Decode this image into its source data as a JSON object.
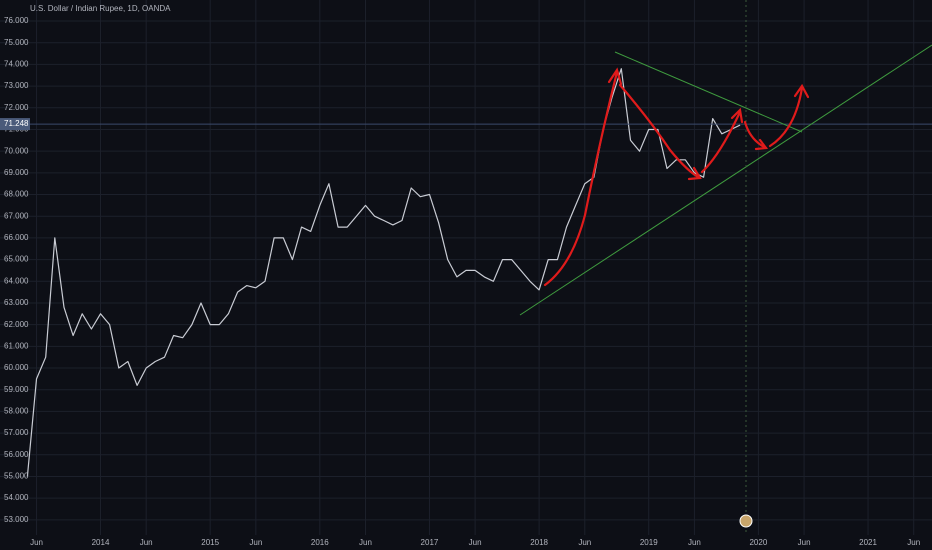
{
  "chart_data": {
    "type": "line",
    "title": "U.S. Dollar / Indian Rupee, 1D, OANDA",
    "x": [
      "2013-05",
      "2013-06",
      "2013-07",
      "2013-08",
      "2013-09",
      "2013-10",
      "2013-11",
      "2013-12",
      "2014-01",
      "2014-02",
      "2014-03",
      "2014-04",
      "2014-05",
      "2014-06",
      "2014-07",
      "2014-08",
      "2014-09",
      "2014-10",
      "2014-11",
      "2014-12",
      "2015-01",
      "2015-02",
      "2015-03",
      "2015-04",
      "2015-05",
      "2015-06",
      "2015-07",
      "2015-08",
      "2015-09",
      "2015-10",
      "2015-11",
      "2015-12",
      "2016-01",
      "2016-02",
      "2016-03",
      "2016-04",
      "2016-05",
      "2016-06",
      "2016-07",
      "2016-08",
      "2016-09",
      "2016-10",
      "2016-11",
      "2016-12",
      "2017-01",
      "2017-02",
      "2017-03",
      "2017-04",
      "2017-05",
      "2017-06",
      "2017-07",
      "2017-08",
      "2017-09",
      "2017-10",
      "2017-11",
      "2017-12",
      "2018-01",
      "2018-02",
      "2018-03",
      "2018-04",
      "2018-05",
      "2018-06",
      "2018-07",
      "2018-08",
      "2018-09",
      "2018-10",
      "2018-11",
      "2018-12",
      "2019-01",
      "2019-02",
      "2019-03",
      "2019-04",
      "2019-05",
      "2019-06",
      "2019-07",
      "2019-08",
      "2019-09",
      "2019-10",
      "2019-11"
    ],
    "series": [
      {
        "color": "#c9ccd4",
        "values": [
          55.0,
          59.5,
          60.5,
          66.0,
          62.8,
          61.5,
          62.5,
          61.8,
          62.5,
          62.0,
          60.0,
          60.3,
          59.2,
          60.0,
          60.3,
          60.5,
          61.5,
          61.4,
          62.0,
          63.0,
          62.0,
          62.0,
          62.5,
          63.5,
          63.8,
          63.7,
          64.0,
          66.0,
          66.0,
          65.0,
          66.5,
          66.3,
          67.5,
          68.5,
          66.5,
          66.5,
          67.0,
          67.5,
          67.0,
          66.8,
          66.6,
          66.8,
          68.3,
          67.9,
          68.0,
          66.7,
          65.0,
          64.2,
          64.5,
          64.5,
          64.2,
          64.0,
          65.0,
          65.0,
          64.5,
          64.0,
          63.6,
          65.0,
          65.0,
          66.5,
          67.5,
          68.5,
          68.8,
          71.0,
          72.5,
          73.8,
          70.5,
          70.0,
          71.0,
          71.0,
          69.2,
          69.6,
          69.6,
          69.0,
          68.8,
          71.5,
          70.8,
          71.0,
          71.2
        ]
      }
    ],
    "last_price": 71.248,
    "xlim": [
      "2013-02",
      "2021-08"
    ],
    "xticks": [
      {
        "value": "2013-06",
        "label": "Jun"
      },
      {
        "value": "2014-01",
        "label": "2014"
      },
      {
        "value": "2014-06",
        "label": "Jun"
      },
      {
        "value": "2015-01",
        "label": "2015"
      },
      {
        "value": "2015-06",
        "label": "Jun"
      },
      {
        "value": "2016-01",
        "label": "2016"
      },
      {
        "value": "2016-06",
        "label": "Jun"
      },
      {
        "value": "2017-01",
        "label": "2017"
      },
      {
        "value": "2017-06",
        "label": "Jun"
      },
      {
        "value": "2018-01",
        "label": "2018"
      },
      {
        "value": "2018-06",
        "label": "Jun"
      },
      {
        "value": "2019-01",
        "label": "2019"
      },
      {
        "value": "2019-06",
        "label": "Jun"
      },
      {
        "value": "2020-01",
        "label": "2020"
      },
      {
        "value": "2020-06",
        "label": "Jun"
      },
      {
        "value": "2021-01",
        "label": "2021"
      },
      {
        "value": "2021-06",
        "label": "Jun"
      }
    ],
    "ylim": [
      52.3,
      76.97
    ],
    "yticks": [
      {
        "value": 53,
        "label": "53.000"
      },
      {
        "value": 54,
        "label": "54.000"
      },
      {
        "value": 55,
        "label": "55.000"
      },
      {
        "value": 56,
        "label": "56.000"
      },
      {
        "value": 57,
        "label": "57.000"
      },
      {
        "value": 58,
        "label": "58.000"
      },
      {
        "value": 59,
        "label": "59.000"
      },
      {
        "value": 60,
        "label": "60.000"
      },
      {
        "value": 61,
        "label": "61.000"
      },
      {
        "value": 62,
        "label": "62.000"
      },
      {
        "value": 63,
        "label": "63.000"
      },
      {
        "value": 64,
        "label": "64.000"
      },
      {
        "value": 65,
        "label": "65.000"
      },
      {
        "value": 66,
        "label": "66.000"
      },
      {
        "value": 67,
        "label": "67.000"
      },
      {
        "value": 68,
        "label": "68.000"
      },
      {
        "value": 69,
        "label": "69.000"
      },
      {
        "value": 70,
        "label": "70.000"
      },
      {
        "value": 71,
        "label": "71.000"
      },
      {
        "value": 72,
        "label": "72.000"
      },
      {
        "value": 73,
        "label": "73.000"
      },
      {
        "value": 74,
        "label": "74.000"
      },
      {
        "value": 75,
        "label": "75.000"
      },
      {
        "value": 76,
        "label": "76.000"
      }
    ],
    "grid": true
  }
}
